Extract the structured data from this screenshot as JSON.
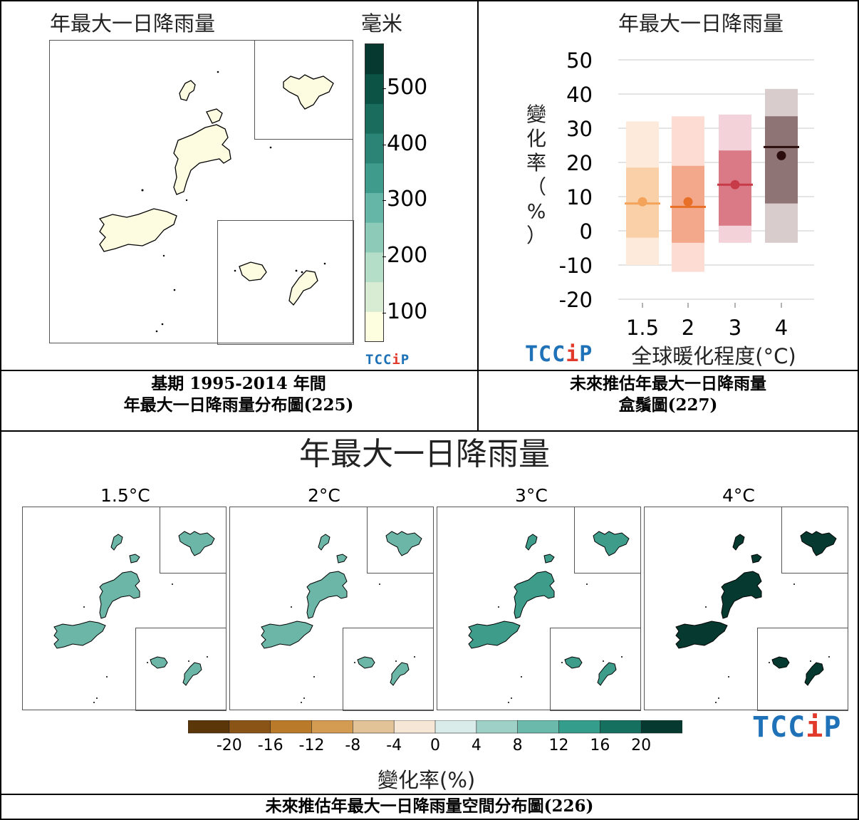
{
  "colors": {
    "base_island": "#fdfce0",
    "teal_scale": [
      "#fdfde0",
      "#d8ecd3",
      "#b4dec8",
      "#8dcbb8",
      "#66b6a7",
      "#3f9b8c",
      "#2b8476",
      "#1a6c5d",
      "#0c5346",
      "#063a30"
    ],
    "diverging_scale": [
      "#5b3608",
      "#8b5417",
      "#b97b2a",
      "#d49c52",
      "#e2c398",
      "#f5e6d6",
      "#d9ece9",
      "#9fd0c7",
      "#6bb9ab",
      "#349d8b",
      "#16705f",
      "#063a30"
    ],
    "box_fill": [
      "#fad0a8",
      "#f3a88b",
      "#d97a86",
      "#8e7474"
    ],
    "box_whisker": [
      "#fdeadb",
      "#fcdcd3",
      "#f3d3d9",
      "#d8cccc"
    ],
    "box_median": [
      "#f3a35a",
      "#e86f28",
      "#c73a47",
      "#2b0d0d"
    ],
    "box_mean": [
      "#f3a35a",
      "#e86f28",
      "#c73a47",
      "#2b0d0d"
    ],
    "tccip_blue": "#1f72b8",
    "tccip_red": "#e23a2a"
  },
  "panel_a": {
    "title": "年最大一日降雨量",
    "unit": "毫米",
    "logo": "TCCiP",
    "colorbar_ticks": [
      "500",
      "400",
      "300",
      "200",
      "100"
    ],
    "caption_line1": "基期 1995-2014 年間",
    "caption_line2": "年最大一日降雨量分布圖(225)"
  },
  "panel_b": {
    "title": "年最大一日降雨量",
    "logo": "TCCiP",
    "caption_line1": "未來推估年最大一日降雨量",
    "caption_line2": "盒鬚圖(227)"
  },
  "panel_c": {
    "title": "年最大一日降雨量",
    "labels": [
      "1.5°C",
      "2°C",
      "3°C",
      "4°C"
    ],
    "fill_colors": [
      "#6bb6a6",
      "#6bb6a6",
      "#3e9c8b",
      "#063a30"
    ],
    "colorbar_ticks": [
      "-20",
      "-16",
      "-12",
      "-8",
      "-4",
      "0",
      "4",
      "8",
      "12",
      "16",
      "20"
    ],
    "colorbar_label": "變化率(%)",
    "logo": "TCCiP",
    "caption": "未來推估年最大一日降雨量空間分布圖(226)"
  },
  "chart_data": [
    {
      "type": "map",
      "title": "年最大一日降雨量",
      "unit": "毫米",
      "colorbar_ticks": [
        100,
        200,
        300,
        400,
        500
      ],
      "colorbar_range": [
        50,
        580
      ],
      "dominant_value_approx": 100
    },
    {
      "type": "box",
      "title": "年最大一日降雨量",
      "xlabel": "全球暖化程度(°C)",
      "ylabel": "變化率（%）",
      "ylim": [
        -20,
        50
      ],
      "yticks": [
        -20,
        -10,
        0,
        10,
        20,
        30,
        40,
        50
      ],
      "categories": [
        "1.5",
        "2",
        "3",
        "4"
      ],
      "whisker_low": [
        -10,
        -12,
        -3.5,
        -3.5
      ],
      "q1": [
        -2,
        -3.5,
        1.5,
        8
      ],
      "median": [
        8,
        7,
        13.5,
        24.5
      ],
      "mean": [
        8.5,
        8.5,
        13.5,
        22
      ],
      "q3": [
        18.5,
        19,
        23.5,
        33.5
      ],
      "whisker_high": [
        32,
        33.5,
        34,
        41.5
      ]
    },
    {
      "type": "map",
      "title": "年最大一日降雨量",
      "panels": [
        "1.5°C",
        "2°C",
        "3°C",
        "4°C"
      ],
      "colorbar_label": "變化率(%)",
      "colorbar_ticks": [
        -20,
        -16,
        -12,
        -8,
        -4,
        0,
        4,
        8,
        12,
        16,
        20
      ],
      "approx_change_percent": [
        10,
        10,
        14,
        24
      ]
    }
  ]
}
